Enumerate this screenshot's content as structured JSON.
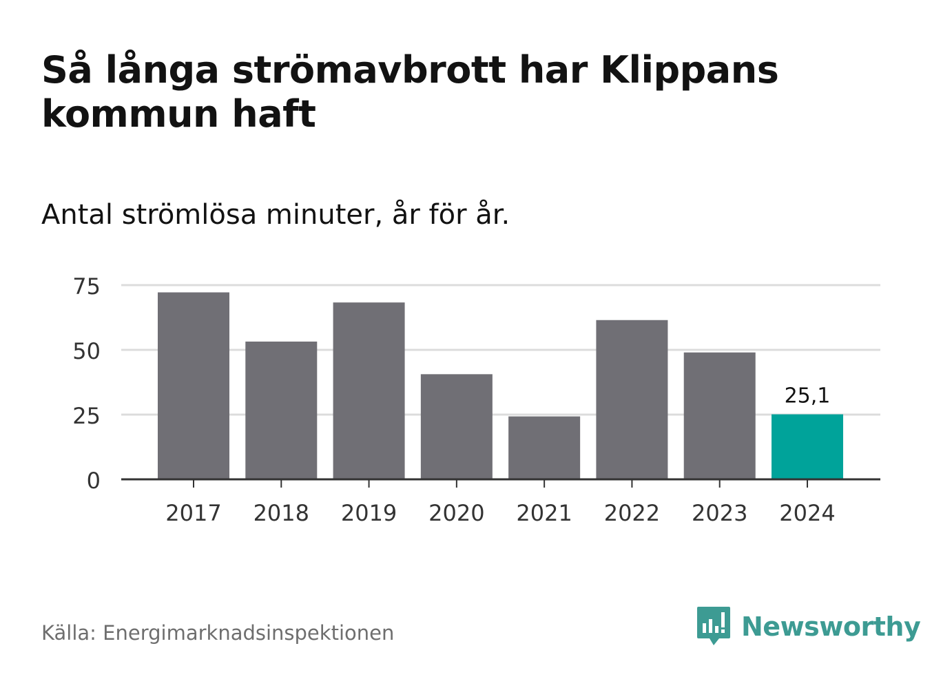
{
  "title": "Så långa strömavbrott har Klippans kommun haft",
  "subtitle": "Antal strömlösa minuter, år för år.",
  "source": "Källa: Energimarknadsinspektionen",
  "brand": "Newsworthy",
  "colors": {
    "bar": "#706f75",
    "highlight": "#00a39a",
    "grid": "#dcdcdc",
    "axis": "#333333",
    "brand": "#3d9b93"
  },
  "chart_data": {
    "type": "bar",
    "title": "Så långa strömavbrott har Klippans kommun haft",
    "subtitle": "Antal strömlösa minuter, år för år.",
    "xlabel": "",
    "ylabel": "",
    "categories": [
      "2017",
      "2018",
      "2019",
      "2020",
      "2021",
      "2022",
      "2023",
      "2024"
    ],
    "values": [
      72.2,
      53.2,
      68.3,
      40.6,
      24.3,
      61.5,
      49.0,
      25.1
    ],
    "highlight_index": 7,
    "data_labels": [
      {
        "index": 7,
        "text": "25,1"
      }
    ],
    "ylim": [
      0,
      75
    ],
    "yticks": [
      0,
      25,
      50,
      75
    ],
    "grid": true,
    "legend": "none"
  }
}
